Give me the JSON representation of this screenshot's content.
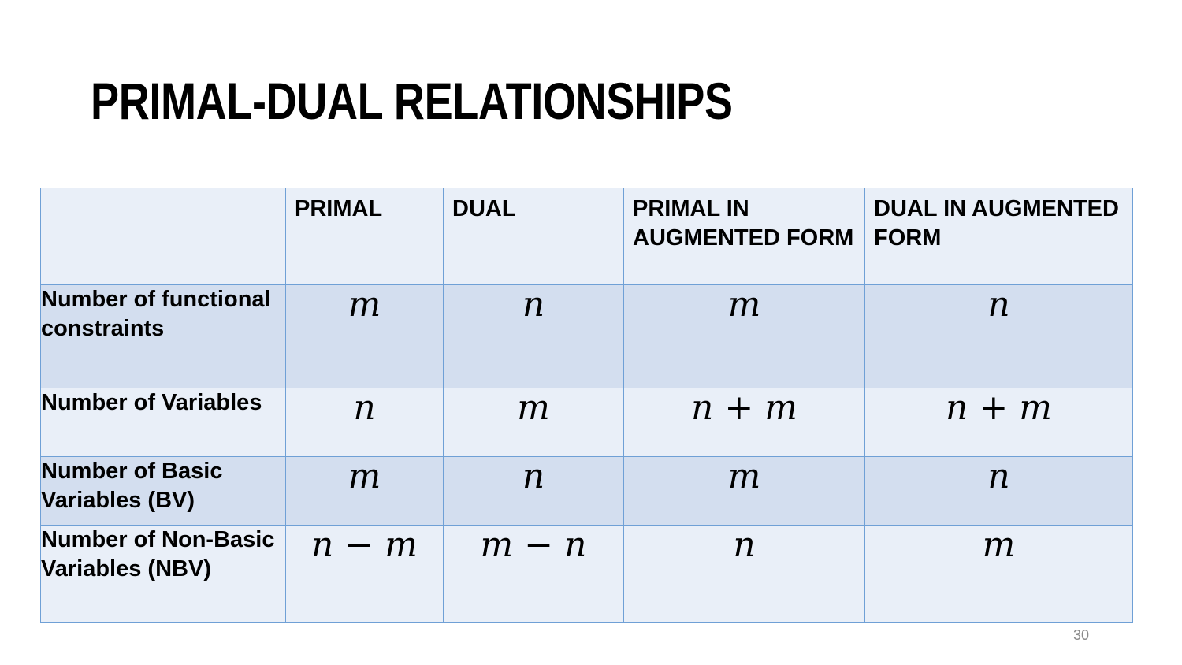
{
  "slide": {
    "title": "PRIMAL-DUAL RELATIONSHIPS",
    "page_number": "30"
  },
  "table": {
    "headers": [
      "",
      "PRIMAL",
      "DUAL",
      "PRIMAL IN AUGMENTED FORM",
      "DUAL IN AUGMENTED FORM"
    ],
    "rows": [
      {
        "label": "Number of functional constraints",
        "cells": [
          "m",
          "n",
          "m",
          "n"
        ]
      },
      {
        "label": "Number of Variables",
        "cells": [
          "n",
          "m",
          "n + m",
          "n + m"
        ]
      },
      {
        "label": "Number of Basic Variables (BV)",
        "cells": [
          "m",
          "n",
          "m",
          "n"
        ]
      },
      {
        "label": "Number of Non-Basic Variables (NBV)",
        "cells": [
          "n − m",
          "m − n",
          "n",
          "m"
        ]
      }
    ]
  },
  "colors": {
    "border": "#6fa0d6",
    "row_dark": "#d3deef",
    "row_light": "#e9eff8"
  }
}
